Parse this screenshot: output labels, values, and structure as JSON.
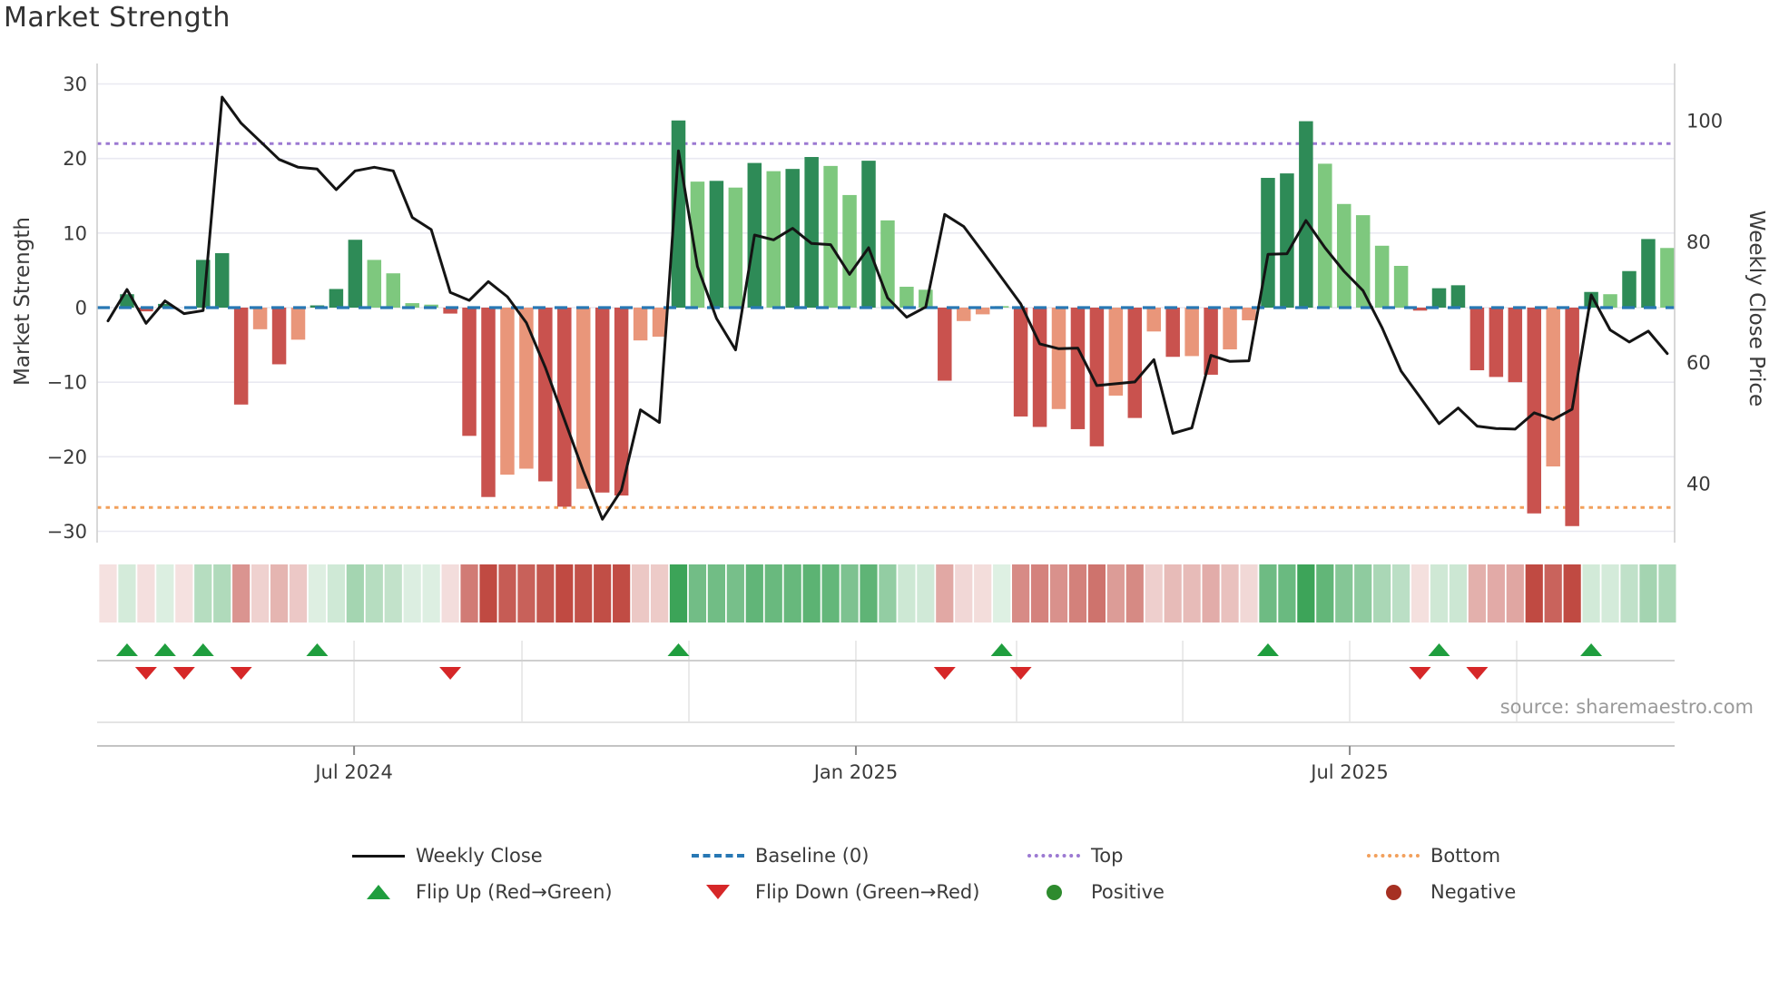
{
  "title": "Market Strength",
  "source": "source: sharemaestro.com",
  "axes": {
    "left_label": "Market Strength",
    "right_label": "Weekly Close Price",
    "left_ticks": [
      "30",
      "20",
      "10",
      "0",
      "−10",
      "−20",
      "−30"
    ],
    "left_tick_values": [
      30,
      20,
      10,
      0,
      -10,
      -20,
      -30
    ],
    "right_ticks": [
      "100",
      "80",
      "60",
      "40"
    ],
    "right_tick_values": [
      100,
      80,
      60,
      40
    ]
  },
  "legend": {
    "row1": [
      {
        "swatch": "line",
        "label": "Weekly Close"
      },
      {
        "swatch": "dash",
        "label": "Baseline (0)"
      },
      {
        "swatch": "dotp",
        "label": "Top"
      },
      {
        "swatch": "doto",
        "label": "Bottom"
      }
    ],
    "row2": [
      {
        "swatch": "tri-up",
        "label": "Flip Up (Red→Green)"
      },
      {
        "swatch": "tri-down",
        "label": "Flip Down (Green→Red)"
      },
      {
        "swatch": "dot-green",
        "label": "Positive"
      },
      {
        "swatch": "dot-red",
        "label": "Negative"
      }
    ]
  },
  "colors": {
    "bar_dark_green": "#2e8b57",
    "bar_light_green": "#7ec87e",
    "bar_dark_red": "#c9524e",
    "bar_salmon": "#e9967a",
    "close_line": "#141414",
    "baseline": "#2878b4",
    "top_line": "#9c79d2",
    "bottom_line": "#f2a05c",
    "flip_up": "#1f9e3e",
    "flip_down": "#d62728",
    "heat_green": "#3aa356",
    "heat_red": "#c04a42",
    "grid": "#e9e9f1",
    "spine": "#cccccc",
    "tick_text": "#3a3a3a"
  },
  "chart_data": {
    "type": "bar+line",
    "title": "Market Strength",
    "ylabel_left": "Market Strength",
    "ylabel_right": "Weekly Close Price",
    "left_range": [
      -33,
      32
    ],
    "right_range": [
      30.2,
      109.5
    ],
    "baseline": 0,
    "top_line": 22,
    "bottom_line": -26.8,
    "grid": true,
    "legend_position": "bottom",
    "x_ticks": [
      {
        "label": "Jul 2024",
        "week": 12.94
      },
      {
        "label": "Jan 2025",
        "week": 39.33
      },
      {
        "label": "Jul 2025",
        "week": 65.3
      }
    ],
    "minor_tick_weeks": [
      12.94,
      21.77,
      30.55,
      39.33,
      47.78,
      56.52,
      65.3,
      74.08
    ],
    "weeks_format": [
      "strength",
      "tone",
      "weekly_close",
      "flip"
    ],
    "weeks": [
      [
        -0.1,
        "sr",
        66.9,
        null
      ],
      [
        1.8,
        "dg",
        72.1,
        "up"
      ],
      [
        -0.5,
        "dr",
        66.5,
        "down"
      ],
      [
        0.5,
        "dg",
        70.2,
        "up"
      ],
      [
        -0.1,
        "sr",
        68.1,
        "down"
      ],
      [
        6.4,
        "dg",
        68.6,
        "up"
      ],
      [
        7.3,
        "dg",
        103.9,
        null
      ],
      [
        -13.0,
        "dr",
        99.6,
        "down"
      ],
      [
        -2.9,
        "sr",
        96.6,
        null
      ],
      [
        -7.6,
        "dr",
        93.6,
        null
      ],
      [
        -4.3,
        "sr",
        92.3,
        null
      ],
      [
        0.3,
        "dg",
        92.0,
        "up"
      ],
      [
        2.5,
        "dg",
        88.6,
        null
      ],
      [
        9.1,
        "dg",
        91.7,
        null
      ],
      [
        6.4,
        "lg",
        92.3,
        null
      ],
      [
        4.6,
        "lg",
        91.7,
        null
      ],
      [
        0.6,
        "lg",
        84.0,
        null
      ],
      [
        0.4,
        "lg",
        82.0,
        null
      ],
      [
        -0.8,
        "dr",
        71.6,
        "down"
      ],
      [
        -17.2,
        "dr",
        70.3,
        null
      ],
      [
        -25.4,
        "dr",
        73.4,
        null
      ],
      [
        -22.4,
        "sr",
        70.9,
        null
      ],
      [
        -21.6,
        "sr",
        66.6,
        null
      ],
      [
        -23.3,
        "dr",
        59.2,
        null
      ],
      [
        -26.7,
        "dr",
        50.6,
        null
      ],
      [
        -24.3,
        "sr",
        42.0,
        null
      ],
      [
        -24.8,
        "dr",
        34.1,
        null
      ],
      [
        -25.2,
        "dr",
        38.9,
        null
      ],
      [
        -4.4,
        "sr",
        52.2,
        null
      ],
      [
        -3.9,
        "sr",
        50.1,
        null
      ],
      [
        25.1,
        "dg",
        95.0,
        "up"
      ],
      [
        16.9,
        "lg",
        75.9,
        null
      ],
      [
        17.0,
        "dg",
        67.3,
        null
      ],
      [
        16.1,
        "lg",
        62.1,
        null
      ],
      [
        19.4,
        "dg",
        81.1,
        null
      ],
      [
        18.3,
        "lg",
        80.3,
        null
      ],
      [
        18.6,
        "dg",
        82.2,
        null
      ],
      [
        20.2,
        "dg",
        79.7,
        null
      ],
      [
        19.0,
        "lg",
        79.5,
        null
      ],
      [
        15.1,
        "lg",
        74.6,
        null
      ],
      [
        19.7,
        "dg",
        79.0,
        null
      ],
      [
        11.7,
        "lg",
        70.7,
        null
      ],
      [
        2.8,
        "lg",
        67.5,
        null
      ],
      [
        2.4,
        "lg",
        69.2,
        null
      ],
      [
        -9.8,
        "dr",
        84.5,
        "down"
      ],
      [
        -1.8,
        "sr",
        82.5,
        null
      ],
      [
        -0.9,
        "sr",
        78.3,
        null
      ],
      [
        0.2,
        "lg",
        74.0,
        "up"
      ],
      [
        -14.6,
        "dr",
        69.7,
        "down"
      ],
      [
        -16.0,
        "dr",
        63.1,
        null
      ],
      [
        -13.6,
        "sr",
        62.3,
        null
      ],
      [
        -16.3,
        "dr",
        62.4,
        null
      ],
      [
        -18.6,
        "dr",
        56.2,
        null
      ],
      [
        -11.8,
        "sr",
        56.5,
        null
      ],
      [
        -14.8,
        "dr",
        56.8,
        null
      ],
      [
        -3.2,
        "sr",
        60.5,
        null
      ],
      [
        -6.6,
        "dr",
        48.3,
        null
      ],
      [
        -6.5,
        "sr",
        49.2,
        null
      ],
      [
        -9.0,
        "dr",
        61.2,
        null
      ],
      [
        -5.6,
        "sr",
        60.2,
        null
      ],
      [
        -1.7,
        "sr",
        60.3,
        null
      ],
      [
        17.4,
        "dg",
        77.9,
        "up"
      ],
      [
        18.0,
        "dg",
        78.0,
        null
      ],
      [
        25.0,
        "dg",
        83.5,
        null
      ],
      [
        19.3,
        "lg",
        79.0,
        null
      ],
      [
        13.9,
        "lg",
        75.1,
        null
      ],
      [
        12.4,
        "lg",
        71.9,
        null
      ],
      [
        8.3,
        "lg",
        65.8,
        null
      ],
      [
        5.6,
        "lg",
        58.6,
        null
      ],
      [
        -0.4,
        "dr",
        54.3,
        "down"
      ],
      [
        2.6,
        "dg",
        49.9,
        "up"
      ],
      [
        3.0,
        "dg",
        52.5,
        null
      ],
      [
        -8.4,
        "dr",
        49.5,
        "down"
      ],
      [
        -9.3,
        "dr",
        49.1,
        null
      ],
      [
        -10.0,
        "dr",
        49.0,
        null
      ],
      [
        -27.6,
        "dr",
        51.7,
        null
      ],
      [
        -21.3,
        "sr",
        50.6,
        null
      ],
      [
        -29.3,
        "dr",
        52.3,
        null
      ],
      [
        2.1,
        "dg",
        71.2,
        "up"
      ],
      [
        1.8,
        "lg",
        65.4,
        null
      ],
      [
        4.9,
        "dg",
        63.4,
        null
      ],
      [
        9.2,
        "dg",
        65.2,
        null
      ],
      [
        8.0,
        "lg",
        61.5,
        null
      ]
    ]
  }
}
